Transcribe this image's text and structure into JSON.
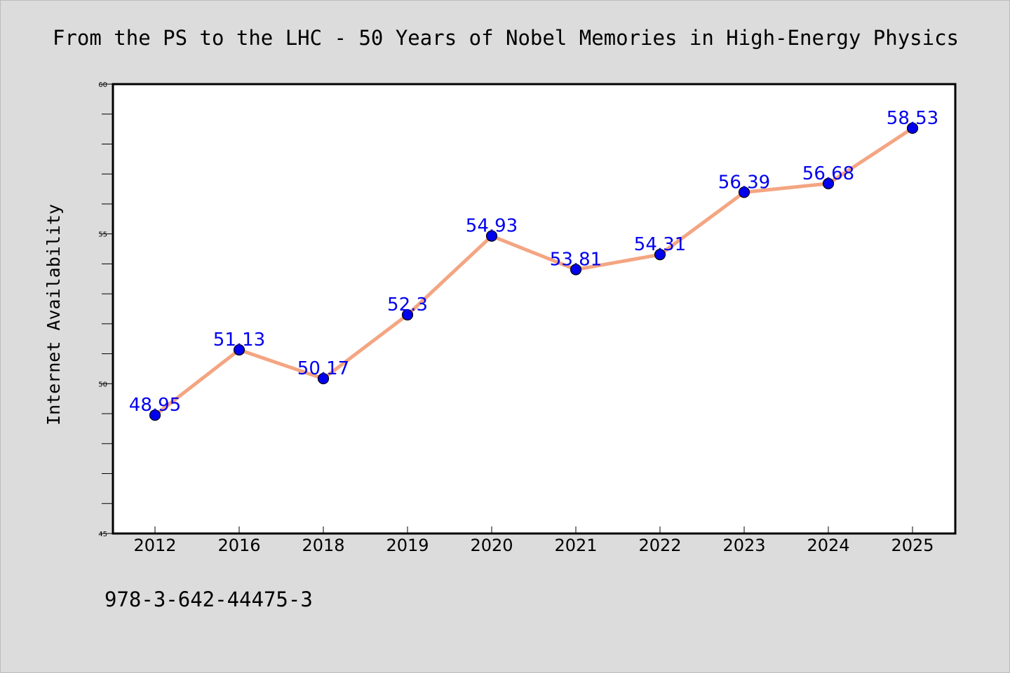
{
  "chart_data": {
    "type": "line",
    "title": "From the PS to the LHC - 50 Years of Nobel Memories in High-Energy Physics",
    "xlabel": "",
    "ylabel": "Internet Availability",
    "categories": [
      "2012",
      "2016",
      "2018",
      "2019",
      "2020",
      "2021",
      "2022",
      "2023",
      "2024",
      "2025"
    ],
    "series": [
      {
        "values": [
          48.95,
          51.13,
          50.17,
          52.3,
          54.93,
          53.81,
          54.31,
          56.39,
          56.68,
          58.53
        ]
      }
    ],
    "data_labels": [
      "48.95",
      "51.13",
      "50.17",
      "52.3",
      "54.93",
      "53.81",
      "54.31",
      "56.39",
      "56.68",
      "58.53"
    ],
    "ylim": [
      45,
      60
    ],
    "yticks": [
      45,
      50,
      55,
      60
    ],
    "ytick_labels": [
      "45",
      "50",
      "55",
      "60"
    ],
    "grid": false,
    "legend": "none",
    "colors": {
      "line": "#f4a582",
      "marker": "#0000ee",
      "label": "#0000ee",
      "background": "#dcdcdc",
      "plot_background": "#ffffff"
    }
  },
  "footer": {
    "isbn": "978-3-642-44475-3"
  }
}
